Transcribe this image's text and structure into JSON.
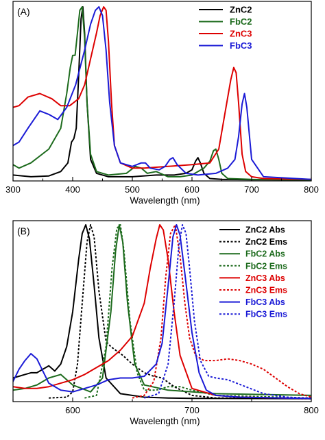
{
  "chart_data": [
    {
      "type": "line",
      "panel_label": "(A)",
      "xlabel": "Wavelength (nm)",
      "ylabel": "",
      "xlim": [
        300,
        800
      ],
      "ylim": [
        0,
        1
      ],
      "xticks": [
        300,
        400,
        500,
        600,
        700,
        800
      ],
      "xtick_labels": [
        "300",
        "400",
        "500",
        "600",
        "700",
        "800"
      ],
      "grid": false,
      "legend_position": "top-right",
      "series": [
        {
          "name": "ZnC2",
          "color": "#000000",
          "dash": "solid",
          "x": [
            300,
            330,
            360,
            380,
            392,
            398,
            402,
            406,
            410,
            414,
            417,
            420,
            424,
            430,
            440,
            460,
            500,
            540,
            570,
            590,
            600,
            606,
            610,
            614,
            620,
            630,
            650,
            700,
            800
          ],
          "y": [
            0.03,
            0.02,
            0.025,
            0.05,
            0.1,
            0.22,
            0.24,
            0.3,
            0.6,
            0.93,
            1.0,
            0.85,
            0.45,
            0.12,
            0.04,
            0.02,
            0.02,
            0.03,
            0.03,
            0.04,
            0.06,
            0.11,
            0.13,
            0.1,
            0.04,
            0.01,
            0.005,
            0.003,
            0.002
          ]
        },
        {
          "name": "FbC2",
          "color": "#1d6b1d",
          "dash": "solid",
          "x": [
            300,
            310,
            330,
            360,
            380,
            390,
            396,
            400,
            404,
            408,
            412,
            416,
            420,
            424,
            430,
            440,
            460,
            490,
            505,
            515,
            525,
            540,
            560,
            580,
            600,
            620,
            630,
            636,
            640,
            645,
            650,
            660,
            700,
            800
          ],
          "y": [
            0.09,
            0.07,
            0.1,
            0.18,
            0.3,
            0.5,
            0.65,
            0.72,
            0.72,
            0.85,
            0.98,
            1.0,
            0.82,
            0.45,
            0.15,
            0.05,
            0.03,
            0.04,
            0.08,
            0.07,
            0.04,
            0.05,
            0.02,
            0.02,
            0.03,
            0.07,
            0.11,
            0.17,
            0.18,
            0.12,
            0.04,
            0.01,
            0.005,
            0.002
          ]
        },
        {
          "name": "ZnC3",
          "color": "#dd0000",
          "dash": "solid",
          "x": [
            300,
            310,
            325,
            345,
            365,
            380,
            395,
            410,
            420,
            430,
            440,
            446,
            452,
            456,
            460,
            465,
            470,
            480,
            500,
            520,
            560,
            600,
            630,
            645,
            655,
            665,
            670,
            674,
            678,
            684,
            690,
            700,
            720,
            800
          ],
          "y": [
            0.42,
            0.43,
            0.48,
            0.5,
            0.47,
            0.43,
            0.43,
            0.47,
            0.55,
            0.7,
            0.85,
            0.95,
            1.0,
            0.98,
            0.8,
            0.45,
            0.2,
            0.1,
            0.07,
            0.07,
            0.08,
            0.09,
            0.1,
            0.18,
            0.38,
            0.58,
            0.65,
            0.62,
            0.45,
            0.15,
            0.05,
            0.02,
            0.01,
            0.005
          ]
        },
        {
          "name": "FbC3",
          "color": "#1a1ad6",
          "dash": "solid",
          "x": [
            300,
            310,
            325,
            345,
            360,
            375,
            390,
            405,
            420,
            430,
            438,
            444,
            450,
            456,
            462,
            470,
            480,
            500,
            515,
            522,
            530,
            545,
            555,
            563,
            568,
            575,
            590,
            610,
            640,
            660,
            672,
            678,
            684,
            688,
            692,
            700,
            720,
            800
          ],
          "y": [
            0.2,
            0.22,
            0.3,
            0.4,
            0.38,
            0.35,
            0.42,
            0.55,
            0.75,
            0.9,
            0.98,
            1.0,
            0.95,
            0.75,
            0.45,
            0.2,
            0.1,
            0.08,
            0.1,
            0.1,
            0.07,
            0.06,
            0.08,
            0.12,
            0.13,
            0.09,
            0.04,
            0.03,
            0.04,
            0.07,
            0.12,
            0.25,
            0.44,
            0.5,
            0.42,
            0.12,
            0.02,
            0.005
          ]
        }
      ]
    },
    {
      "type": "line",
      "panel_label": "(B)",
      "xlabel": "Wavelength (nm)",
      "ylabel": "",
      "xlim": [
        550,
        800
      ],
      "ylim": [
        0,
        1
      ],
      "xticks": [
        600,
        700,
        800
      ],
      "xtick_labels": [
        "600",
        "700",
        "800"
      ],
      "grid": false,
      "legend_position": "top-right",
      "series": [
        {
          "name": "ZnC2 Abs",
          "color": "#000000",
          "dash": "solid",
          "x": [
            550,
            555,
            560,
            565,
            570,
            575,
            580,
            585,
            590,
            595,
            600,
            605,
            608,
            611,
            614,
            618,
            622,
            628,
            640,
            660,
            680,
            700,
            800
          ],
          "y": [
            0.12,
            0.13,
            0.14,
            0.15,
            0.15,
            0.17,
            0.19,
            0.16,
            0.2,
            0.3,
            0.5,
            0.8,
            0.95,
            1.0,
            0.92,
            0.65,
            0.35,
            0.12,
            0.03,
            0.01,
            0.005,
            0.003,
            0.001
          ]
        },
        {
          "name": "ZnC2 Ems",
          "color": "#000000",
          "dash": "dotted",
          "x": [
            580,
            595,
            600,
            604,
            608,
            612,
            615,
            618,
            622,
            628,
            632,
            636,
            642,
            650,
            660,
            668,
            675,
            685,
            700,
            720,
            800
          ],
          "y": [
            0.005,
            0.01,
            0.04,
            0.2,
            0.55,
            0.9,
            1.0,
            0.93,
            0.62,
            0.33,
            0.3,
            0.28,
            0.25,
            0.2,
            0.15,
            0.13,
            0.12,
            0.07,
            0.02,
            0.005,
            0.001
          ]
        },
        {
          "name": "FbC2 Abs",
          "color": "#1d6b1d",
          "dash": "solid",
          "x": [
            550,
            560,
            570,
            580,
            590,
            600,
            615,
            625,
            632,
            636,
            639,
            642,
            646,
            652,
            660,
            680,
            700,
            720,
            800
          ],
          "y": [
            0.05,
            0.06,
            0.08,
            0.12,
            0.14,
            0.08,
            0.04,
            0.12,
            0.5,
            0.85,
            1.0,
            0.9,
            0.55,
            0.2,
            0.08,
            0.05,
            0.04,
            0.03,
            0.02
          ]
        },
        {
          "name": "FbC2 Ems",
          "color": "#1d6b1d",
          "dash": "dotted",
          "x": [
            610,
            620,
            628,
            633,
            637,
            640,
            643,
            648,
            654,
            660,
            670,
            680,
            690,
            700,
            720,
            800
          ],
          "y": [
            0.005,
            0.02,
            0.3,
            0.75,
            0.98,
            1.0,
            0.85,
            0.45,
            0.15,
            0.05,
            0.05,
            0.07,
            0.07,
            0.05,
            0.02,
            0.005
          ]
        },
        {
          "name": "ZnC3 Abs",
          "color": "#dd0000",
          "dash": "solid",
          "x": [
            550,
            560,
            570,
            580,
            590,
            600,
            610,
            620,
            630,
            640,
            650,
            660,
            665,
            670,
            673,
            676,
            680,
            685,
            690,
            700,
            720,
            740,
            800
          ],
          "y": [
            0.07,
            0.06,
            0.06,
            0.07,
            0.09,
            0.11,
            0.14,
            0.18,
            0.22,
            0.28,
            0.36,
            0.55,
            0.75,
            0.92,
            1.0,
            0.97,
            0.8,
            0.5,
            0.25,
            0.06,
            0.02,
            0.01,
            0.002
          ]
        },
        {
          "name": "ZnC3 Ems",
          "color": "#dd0000",
          "dash": "dotted",
          "x": [
            650,
            660,
            668,
            674,
            678,
            682,
            686,
            690,
            694,
            698,
            703,
            710,
            720,
            730,
            740,
            750,
            760,
            770,
            780,
            790,
            800
          ],
          "y": [
            0.005,
            0.02,
            0.1,
            0.35,
            0.7,
            0.95,
            1.0,
            0.82,
            0.55,
            0.35,
            0.25,
            0.22,
            0.22,
            0.23,
            0.22,
            0.2,
            0.17,
            0.12,
            0.07,
            0.03,
            0.01
          ]
        },
        {
          "name": "FbC3 Abs",
          "color": "#1a1ad6",
          "dash": "solid",
          "x": [
            550,
            555,
            560,
            565,
            570,
            575,
            580,
            590,
            600,
            610,
            620,
            630,
            640,
            650,
            660,
            670,
            675,
            680,
            684,
            687,
            690,
            694,
            700,
            706,
            712,
            720,
            740,
            800
          ],
          "y": [
            0.1,
            0.17,
            0.22,
            0.26,
            0.23,
            0.16,
            0.09,
            0.05,
            0.04,
            0.06,
            0.08,
            0.11,
            0.12,
            0.12,
            0.13,
            0.2,
            0.32,
            0.65,
            0.93,
            1.0,
            0.94,
            0.72,
            0.38,
            0.15,
            0.05,
            0.02,
            0.01,
            0.002
          ]
        },
        {
          "name": "FbC3 Ems",
          "color": "#1a1ad6",
          "dash": "dotted",
          "x": [
            660,
            672,
            680,
            685,
            689,
            692,
            695,
            698,
            702,
            707,
            714,
            720,
            730,
            745,
            760,
            780,
            800
          ],
          "y": [
            0.005,
            0.03,
            0.2,
            0.55,
            0.88,
            1.0,
            0.95,
            0.75,
            0.45,
            0.22,
            0.13,
            0.12,
            0.11,
            0.07,
            0.03,
            0.01,
            0.003
          ]
        }
      ]
    }
  ]
}
